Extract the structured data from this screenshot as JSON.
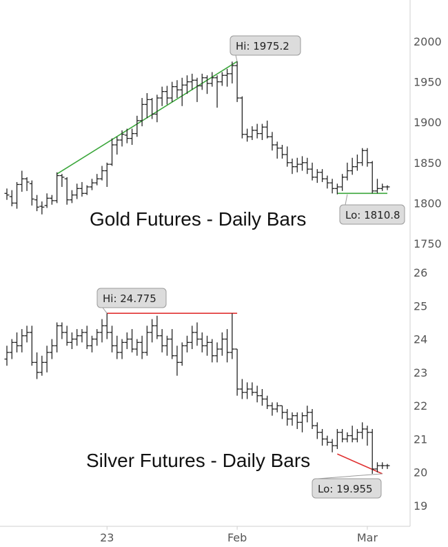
{
  "chart_data": [
    {
      "type": "ohlc",
      "title": "Gold Futures - Daily Bars",
      "ylim": [
        1750,
        2000
      ],
      "yticks": [
        1750,
        1800,
        1850,
        1900,
        1950,
        2000
      ],
      "xticks": [
        {
          "label": "23",
          "idx": 20
        },
        {
          "label": "Feb",
          "idx": 46
        },
        {
          "label": "Mar",
          "idx": 72
        }
      ],
      "x_count": 77,
      "high_callout": {
        "label": "Hi: 1975.2",
        "idx": 46,
        "value": 1975.2
      },
      "low_callout": {
        "label": "Lo: 1810.8",
        "idx": 68,
        "value": 1810.8
      },
      "trendline_color": "#3aa63a",
      "trendline": [
        {
          "idx": 10,
          "value": 1836
        },
        {
          "idx": 46,
          "value": 1975.2
        }
      ],
      "lowline": [
        {
          "idx": 66,
          "value": 1812
        },
        {
          "idx": 76,
          "value": 1812
        }
      ],
      "bars": [
        [
          1812,
          1818,
          1804,
          1810
        ],
        [
          1808,
          1816,
          1796,
          1800
        ],
        [
          1800,
          1826,
          1793,
          1823
        ],
        [
          1823,
          1840,
          1814,
          1830
        ],
        [
          1830,
          1832,
          1815,
          1826
        ],
        [
          1824,
          1828,
          1797,
          1805
        ],
        [
          1804,
          1810,
          1790,
          1795
        ],
        [
          1796,
          1802,
          1786,
          1795
        ],
        [
          1797,
          1812,
          1794,
          1806
        ],
        [
          1806,
          1810,
          1798,
          1803
        ],
        [
          1803,
          1838,
          1800,
          1834
        ],
        [
          1834,
          1836,
          1820,
          1832
        ],
        [
          1830,
          1832,
          1798,
          1804
        ],
        [
          1804,
          1816,
          1800,
          1810
        ],
        [
          1810,
          1824,
          1805,
          1818
        ],
        [
          1818,
          1826,
          1808,
          1812
        ],
        [
          1812,
          1822,
          1810,
          1820
        ],
        [
          1820,
          1830,
          1816,
          1825
        ],
        [
          1825,
          1836,
          1822,
          1830
        ],
        [
          1830,
          1846,
          1828,
          1840
        ],
        [
          1840,
          1850,
          1820,
          1848
        ],
        [
          1848,
          1880,
          1846,
          1872
        ],
        [
          1872,
          1882,
          1860,
          1878
        ],
        [
          1878,
          1890,
          1870,
          1885
        ],
        [
          1884,
          1892,
          1874,
          1880
        ],
        [
          1880,
          1892,
          1872,
          1886
        ],
        [
          1886,
          1908,
          1882,
          1902
        ],
        [
          1902,
          1930,
          1895,
          1922
        ],
        [
          1922,
          1936,
          1905,
          1928
        ],
        [
          1928,
          1930,
          1904,
          1910
        ],
        [
          1910,
          1934,
          1900,
          1930
        ],
        [
          1930,
          1944,
          1920,
          1938
        ],
        [
          1938,
          1945,
          1922,
          1930
        ],
        [
          1930,
          1950,
          1925,
          1944
        ],
        [
          1944,
          1952,
          1930,
          1940
        ],
        [
          1940,
          1955,
          1920,
          1946
        ],
        [
          1946,
          1958,
          1935,
          1950
        ],
        [
          1950,
          1960,
          1940,
          1952
        ],
        [
          1952,
          1955,
          1925,
          1945
        ],
        [
          1945,
          1960,
          1940,
          1955
        ],
        [
          1955,
          1958,
          1935,
          1948
        ],
        [
          1948,
          1962,
          1944,
          1955
        ],
        [
          1955,
          1958,
          1918,
          1950
        ],
        [
          1950,
          1962,
          1945,
          1958
        ],
        [
          1958,
          1966,
          1944,
          1960
        ],
        [
          1960,
          1975,
          1948,
          1970
        ],
        [
          1970,
          1975.2,
          1925,
          1930
        ],
        [
          1930,
          1932,
          1880,
          1885
        ],
        [
          1885,
          1892,
          1876,
          1882
        ],
        [
          1882,
          1895,
          1878,
          1890
        ],
        [
          1890,
          1898,
          1880,
          1886
        ],
        [
          1886,
          1898,
          1878,
          1894
        ],
        [
          1894,
          1902,
          1880,
          1882
        ],
        [
          1882,
          1888,
          1865,
          1872
        ],
        [
          1872,
          1876,
          1855,
          1868
        ],
        [
          1868,
          1872,
          1855,
          1860
        ],
        [
          1860,
          1870,
          1845,
          1850
        ],
        [
          1850,
          1855,
          1836,
          1845
        ],
        [
          1845,
          1856,
          1838,
          1848
        ],
        [
          1848,
          1858,
          1840,
          1850
        ],
        [
          1850,
          1856,
          1836,
          1842
        ],
        [
          1842,
          1850,
          1828,
          1832
        ],
        [
          1832,
          1842,
          1825,
          1838
        ],
        [
          1838,
          1842,
          1826,
          1830
        ],
        [
          1830,
          1834,
          1818,
          1825
        ],
        [
          1825,
          1830,
          1812,
          1818
        ],
        [
          1818,
          1824,
          1810.8,
          1820
        ],
        [
          1820,
          1836,
          1815,
          1832
        ],
        [
          1832,
          1850,
          1828,
          1840
        ],
        [
          1840,
          1856,
          1835,
          1845
        ],
        [
          1845,
          1860,
          1840,
          1850
        ],
        [
          1850,
          1868,
          1846,
          1865
        ],
        [
          1865,
          1868,
          1845,
          1850
        ],
        [
          1850,
          1852,
          1812,
          1815
        ],
        [
          1815,
          1830,
          1812,
          1818
        ],
        [
          1818,
          1824,
          1815,
          1820
        ],
        [
          1820,
          1822,
          1816,
          1820
        ]
      ]
    },
    {
      "type": "ohlc",
      "title": "Silver Futures - Daily Bars",
      "ylim": [
        19,
        26
      ],
      "yticks": [
        19,
        20,
        21,
        22,
        23,
        24,
        25,
        26
      ],
      "xticks": [
        {
          "label": "23",
          "idx": 20
        },
        {
          "label": "Feb",
          "idx": 46
        },
        {
          "label": "Mar",
          "idx": 72
        }
      ],
      "x_count": 77,
      "high_callout": {
        "label": "Hi: 24.775",
        "idx": 20,
        "value": 24.775
      },
      "low_callout": {
        "label": "Lo: 19.955",
        "idx": 75,
        "value": 19.955
      },
      "trendline_color": "#e03030",
      "trendline": [
        {
          "idx": 20,
          "value": 24.775
        },
        {
          "idx": 46,
          "value": 24.775
        }
      ],
      "lowline": [
        {
          "idx": 66,
          "value": 20.55
        },
        {
          "idx": 75,
          "value": 19.955
        }
      ],
      "bars": [
        [
          23.4,
          23.8,
          23.2,
          23.6
        ],
        [
          23.6,
          24.0,
          23.4,
          23.9
        ],
        [
          23.9,
          24.2,
          23.6,
          23.8
        ],
        [
          23.8,
          24.3,
          23.6,
          24.1
        ],
        [
          24.1,
          24.4,
          23.9,
          24.2
        ],
        [
          24.2,
          24.4,
          23.2,
          23.3
        ],
        [
          23.3,
          23.6,
          22.8,
          23.0
        ],
        [
          23.0,
          23.5,
          22.9,
          23.3
        ],
        [
          23.3,
          23.8,
          23.0,
          23.6
        ],
        [
          23.6,
          24.0,
          23.4,
          23.8
        ],
        [
          23.8,
          24.5,
          23.6,
          24.4
        ],
        [
          24.4,
          24.5,
          24.0,
          24.2
        ],
        [
          24.2,
          24.4,
          23.8,
          23.9
        ],
        [
          23.9,
          24.2,
          23.7,
          24.0
        ],
        [
          24.0,
          24.3,
          23.8,
          24.1
        ],
        [
          24.1,
          24.3,
          23.9,
          24.2
        ],
        [
          24.2,
          24.4,
          23.7,
          23.8
        ],
        [
          23.8,
          24.1,
          23.6,
          24.0
        ],
        [
          24.0,
          24.3,
          23.8,
          24.2
        ],
        [
          24.2,
          24.6,
          23.9,
          24.4
        ],
        [
          24.4,
          24.775,
          24.0,
          24.2
        ],
        [
          24.2,
          24.4,
          23.6,
          23.8
        ],
        [
          23.8,
          24.1,
          23.4,
          23.6
        ],
        [
          23.6,
          24.0,
          23.4,
          23.9
        ],
        [
          23.9,
          24.2,
          23.7,
          24.0
        ],
        [
          24.0,
          24.3,
          23.6,
          23.7
        ],
        [
          23.7,
          24.0,
          23.5,
          23.9
        ],
        [
          23.9,
          24.1,
          23.4,
          23.6
        ],
        [
          23.6,
          24.4,
          23.5,
          24.2
        ],
        [
          24.2,
          24.6,
          23.9,
          24.4
        ],
        [
          24.4,
          24.7,
          24.0,
          24.1
        ],
        [
          24.1,
          24.3,
          23.6,
          23.8
        ],
        [
          23.8,
          24.1,
          23.5,
          24.0
        ],
        [
          24.0,
          24.3,
          23.4,
          23.5
        ],
        [
          23.5,
          23.8,
          22.9,
          23.3
        ],
        [
          23.3,
          23.9,
          23.2,
          23.8
        ],
        [
          23.8,
          24.1,
          23.6,
          23.9
        ],
        [
          23.9,
          24.4,
          23.7,
          24.2
        ],
        [
          24.2,
          24.5,
          23.8,
          24.0
        ],
        [
          24.0,
          24.2,
          23.6,
          23.8
        ],
        [
          23.8,
          24.1,
          23.5,
          23.9
        ],
        [
          23.9,
          24.0,
          23.3,
          23.5
        ],
        [
          23.5,
          23.9,
          23.3,
          23.7
        ],
        [
          23.7,
          24.2,
          23.5,
          24.0
        ],
        [
          24.0,
          24.3,
          23.3,
          23.6
        ],
        [
          23.6,
          24.775,
          23.4,
          23.7
        ],
        [
          23.7,
          23.7,
          22.3,
          22.5
        ],
        [
          22.5,
          22.8,
          22.2,
          22.4
        ],
        [
          22.4,
          22.7,
          22.2,
          22.5
        ],
        [
          22.5,
          22.7,
          22.3,
          22.4
        ],
        [
          22.4,
          22.6,
          22.1,
          22.3
        ],
        [
          22.3,
          22.5,
          22.0,
          22.2
        ],
        [
          22.2,
          22.3,
          21.9,
          22.0
        ],
        [
          22.0,
          22.1,
          21.7,
          21.9
        ],
        [
          21.9,
          22.1,
          21.8,
          22.0
        ],
        [
          22.0,
          22.0,
          21.6,
          21.8
        ],
        [
          21.8,
          21.9,
          21.4,
          21.6
        ],
        [
          21.6,
          21.8,
          21.4,
          21.7
        ],
        [
          21.7,
          21.8,
          21.3,
          21.5
        ],
        [
          21.5,
          21.8,
          21.2,
          21.7
        ],
        [
          21.7,
          22.0,
          21.5,
          21.8
        ],
        [
          21.8,
          21.9,
          21.3,
          21.4
        ],
        [
          21.4,
          21.5,
          21.0,
          21.2
        ],
        [
          21.2,
          21.3,
          20.8,
          21.0
        ],
        [
          21.0,
          21.1,
          20.8,
          20.9
        ],
        [
          20.9,
          21.0,
          20.6,
          20.8
        ],
        [
          20.8,
          21.3,
          20.7,
          21.2
        ],
        [
          21.2,
          21.3,
          20.9,
          21.0
        ],
        [
          21.0,
          21.2,
          20.9,
          21.1
        ],
        [
          21.1,
          21.4,
          20.9,
          21.0
        ],
        [
          21.0,
          21.3,
          20.9,
          21.2
        ],
        [
          21.2,
          21.5,
          21.0,
          21.3
        ],
        [
          21.3,
          21.4,
          20.8,
          21.2
        ],
        [
          21.2,
          21.3,
          19.955,
          20.1
        ],
        [
          20.1,
          20.3,
          20.0,
          20.2
        ],
        [
          20.2,
          20.3,
          20.1,
          20.2
        ],
        [
          20.2,
          20.25,
          20.1,
          20.2
        ]
      ]
    }
  ]
}
